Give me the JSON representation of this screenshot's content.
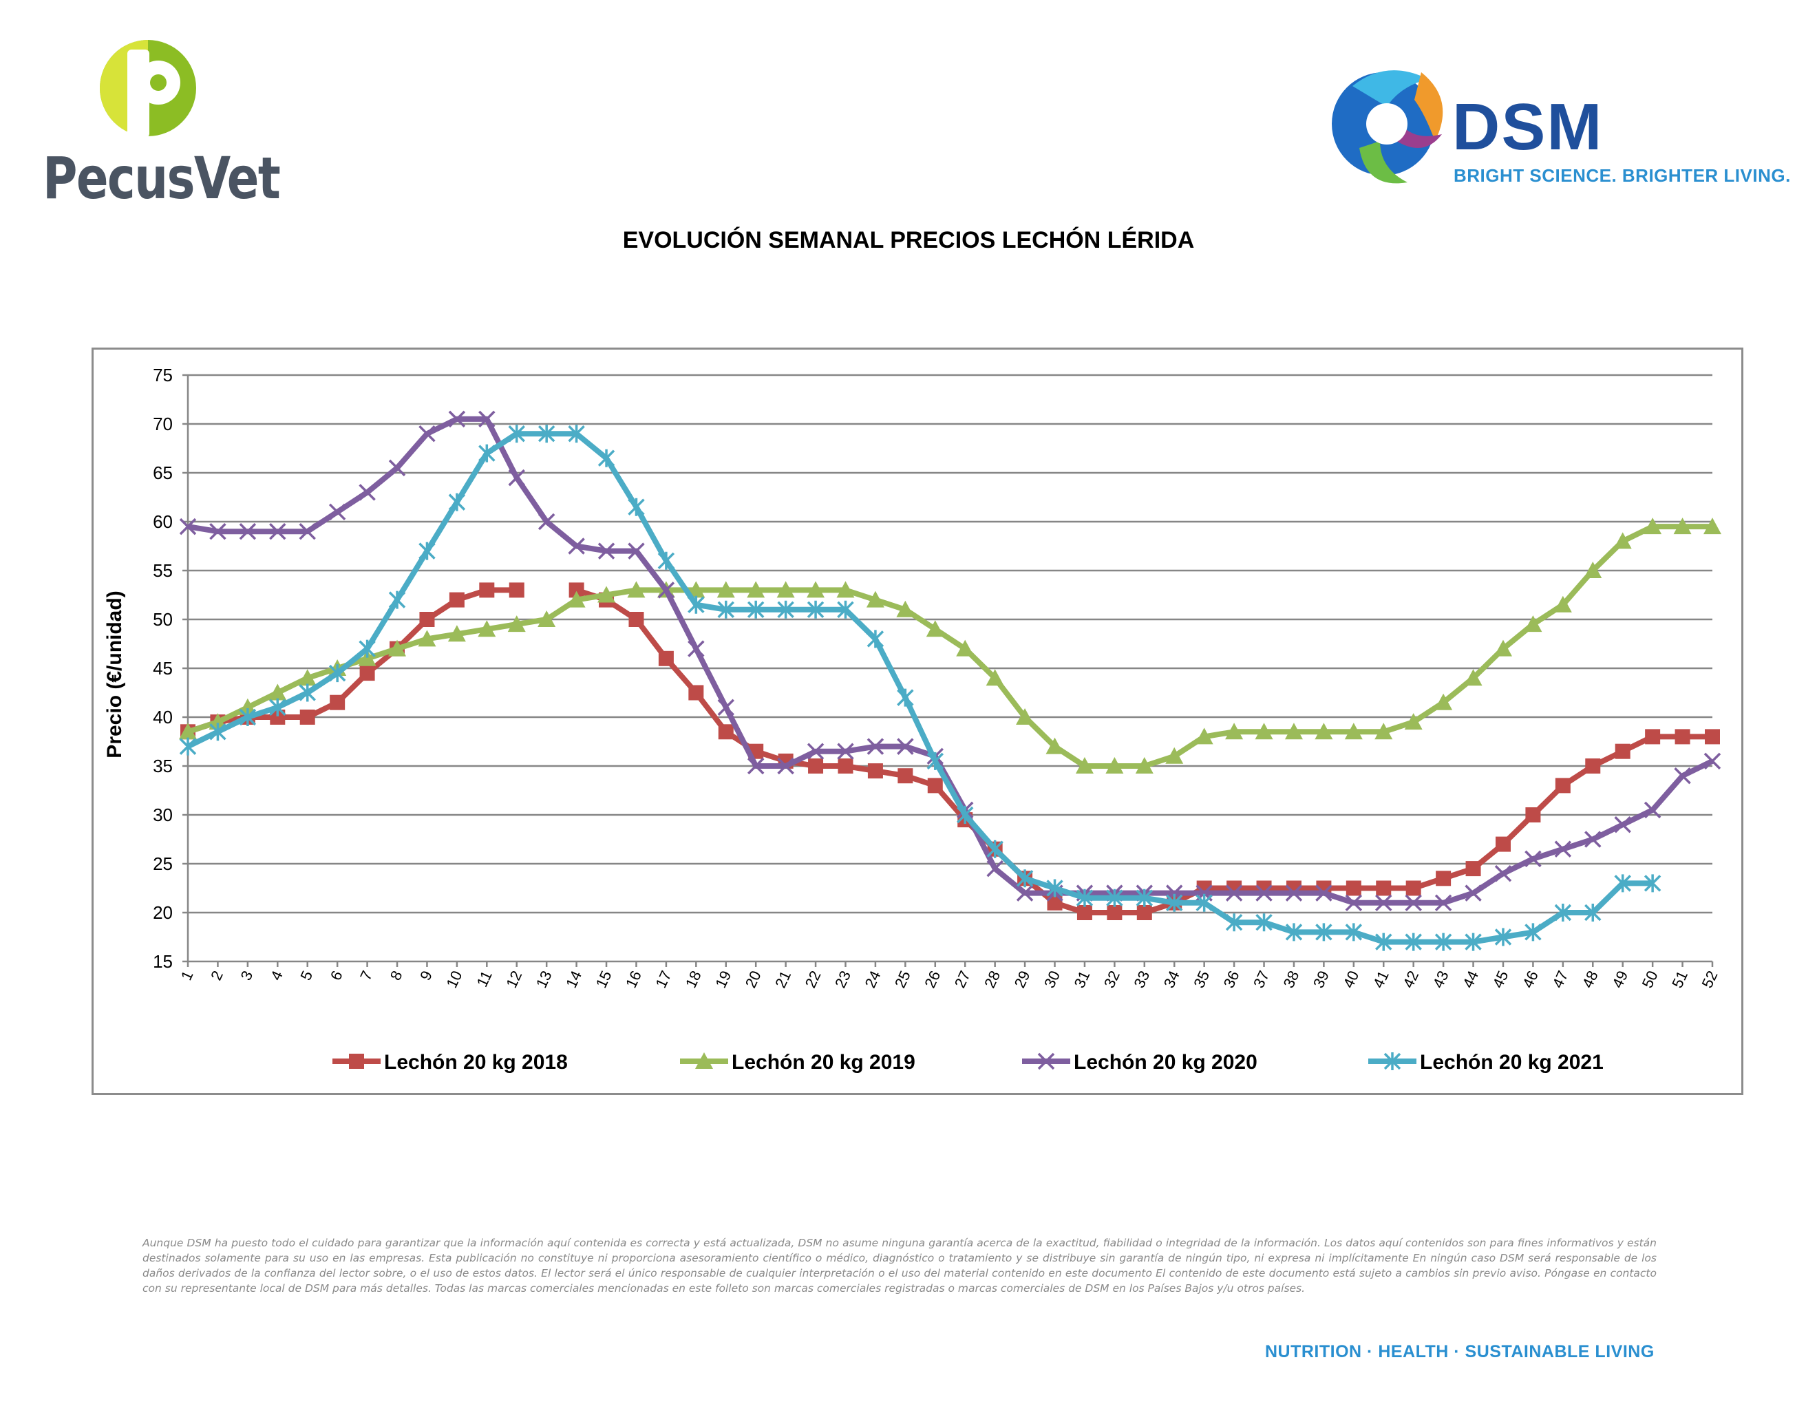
{
  "logos": {
    "pecusvet": "PecusVet",
    "dsm": "DSM",
    "dsm_tagline": "BRIGHT SCIENCE. BRIGHTER LIVING."
  },
  "title": "EVOLUCIÓN SEMANAL PRECIOS LECHÓN LÉRIDA",
  "colors": {
    "s2018": "#be4b48",
    "s2019": "#9bbb59",
    "s2020": "#7e5e9f",
    "s2021": "#4bacc6",
    "grid": "#868686"
  },
  "chart_data": {
    "type": "line",
    "title": "EVOLUCIÓN SEMANAL PRECIOS LECHÓN LÉRIDA",
    "xlabel": "",
    "ylabel": "Precio (€/unidad)",
    "ylim": [
      15,
      75
    ],
    "yticks": [
      15,
      20,
      25,
      30,
      35,
      40,
      45,
      50,
      55,
      60,
      65,
      70,
      75
    ],
    "grid": true,
    "legend_position": "bottom",
    "x": [
      1,
      2,
      3,
      4,
      5,
      6,
      7,
      8,
      9,
      10,
      11,
      12,
      13,
      14,
      15,
      16,
      17,
      18,
      19,
      20,
      21,
      22,
      23,
      24,
      25,
      26,
      27,
      28,
      29,
      30,
      31,
      32,
      33,
      34,
      35,
      36,
      37,
      38,
      39,
      40,
      41,
      42,
      43,
      44,
      45,
      46,
      47,
      48,
      49,
      50,
      51,
      52
    ],
    "series": [
      {
        "name": "Lechón 20 kg 2018",
        "color": "#be4b48",
        "marker": "square",
        "values": [
          38.5,
          39.5,
          40,
          40,
          40,
          41.5,
          44.5,
          47,
          50,
          52,
          53,
          53,
          null,
          53,
          52,
          50,
          46,
          42.5,
          38.5,
          36.5,
          35.5,
          35,
          35,
          34.5,
          34,
          33,
          29.5,
          26.5,
          23.5,
          21,
          20,
          20,
          20,
          21,
          22.5,
          22.5,
          22.5,
          22.5,
          22.5,
          22.5,
          22.5,
          22.5,
          23.5,
          24.5,
          27,
          30,
          33,
          35,
          36.5,
          38,
          38,
          38
        ]
      },
      {
        "name": "Lechón 20 kg 2019",
        "color": "#9bbb59",
        "marker": "triangle",
        "values": [
          38.5,
          39.5,
          41,
          42.5,
          44,
          45,
          46,
          47,
          48,
          48.5,
          49,
          49.5,
          50,
          52,
          52.5,
          53,
          53,
          53,
          53,
          53,
          53,
          53,
          53,
          52,
          51,
          49,
          47,
          44,
          40,
          37,
          35,
          35,
          35,
          36,
          38,
          38.5,
          38.5,
          38.5,
          38.5,
          38.5,
          38.5,
          39.5,
          41.5,
          44,
          47,
          49.5,
          51.5,
          55,
          58,
          59.5,
          59.5,
          59.5
        ]
      },
      {
        "name": "Lechón 20 kg 2020",
        "color": "#7e5e9f",
        "marker": "x",
        "values": [
          59.5,
          59,
          59,
          59,
          59,
          61,
          63,
          65.5,
          69,
          70.5,
          70.5,
          64.5,
          60,
          57.5,
          57,
          57,
          53,
          47,
          41,
          35,
          35,
          36.5,
          36.5,
          37,
          37,
          36,
          30.5,
          24.5,
          22,
          22,
          22,
          22,
          22,
          22,
          22,
          22,
          22,
          22,
          22,
          21,
          21,
          21,
          21,
          22,
          24,
          25.5,
          26.5,
          27.5,
          29,
          30.5,
          34,
          35.5
        ]
      },
      {
        "name": "Lechón 20 kg 2021",
        "color": "#4bacc6",
        "marker": "star",
        "values": [
          37,
          38.5,
          40,
          41,
          42.5,
          44.5,
          47,
          52,
          57,
          62,
          67,
          69,
          69,
          69,
          66.5,
          61.5,
          56,
          51.5,
          51,
          51,
          51,
          51,
          51,
          48,
          42,
          35.5,
          30,
          26.5,
          23.5,
          22.5,
          21.5,
          21.5,
          21.5,
          21,
          21,
          19,
          19,
          18,
          18,
          18,
          17,
          17,
          17,
          17,
          17.5,
          18,
          20,
          20,
          23,
          23,
          null,
          null
        ]
      }
    ]
  },
  "disclaimer": "Aunque DSM ha puesto todo el cuidado para garantizar que la información aquí contenida es correcta y está actualizada, DSM no asume ninguna garantía acerca de la exactitud, fiabilidad o integridad de la información. Los datos aquí contenidos son para fines informativos y están destinados solamente para su uso en las empresas. Esta publicación no constituye ni proporciona asesoramiento científico o médico, diagnóstico o tratamiento y se distribuye sin garantía de ningún tipo, ni expresa ni implícitamente En ningún caso DSM será responsable de los daños derivados de la confianza del lector sobre, o el uso de estos datos. El lector será el único responsable de cualquier interpretación o el uso del material contenido en este documento El contenido de este documento está sujeto a cambios sin previo aviso. Póngase en contacto con su representante local de DSM para más detalles. Todas las marcas comerciales mencionadas en este folleto son marcas comerciales registradas o marcas comerciales de DSM en los Países Bajos y/u otros países.",
  "footer_tagline": "NUTRITION · HEALTH · SUSTAINABLE LIVING"
}
